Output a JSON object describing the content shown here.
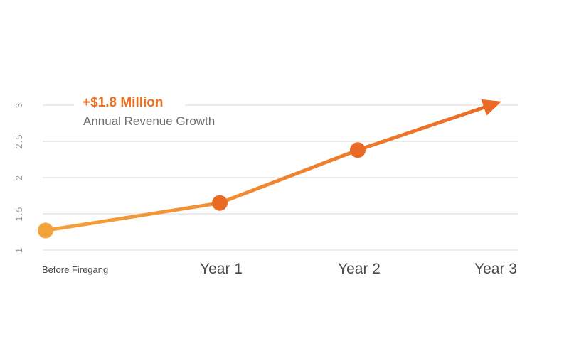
{
  "chart_data": {
    "type": "line",
    "categories": [
      "Before Firegang",
      "Year 1",
      "Year 2",
      "Year 3"
    ],
    "values": [
      1.27,
      1.65,
      2.38,
      3.05
    ],
    "ylim": [
      1,
      3
    ],
    "yticks": [
      "1",
      "1.5",
      "2",
      "2.5",
      "3"
    ],
    "grid": true,
    "annotation": {
      "headline": "+$1.8 Million",
      "subtitle": "Annual Revenue Growth"
    },
    "colors": {
      "start": "#f4a33b",
      "end": "#ea6a25",
      "text_accent": "#ea7021",
      "grid": "#e6e6e6"
    }
  }
}
